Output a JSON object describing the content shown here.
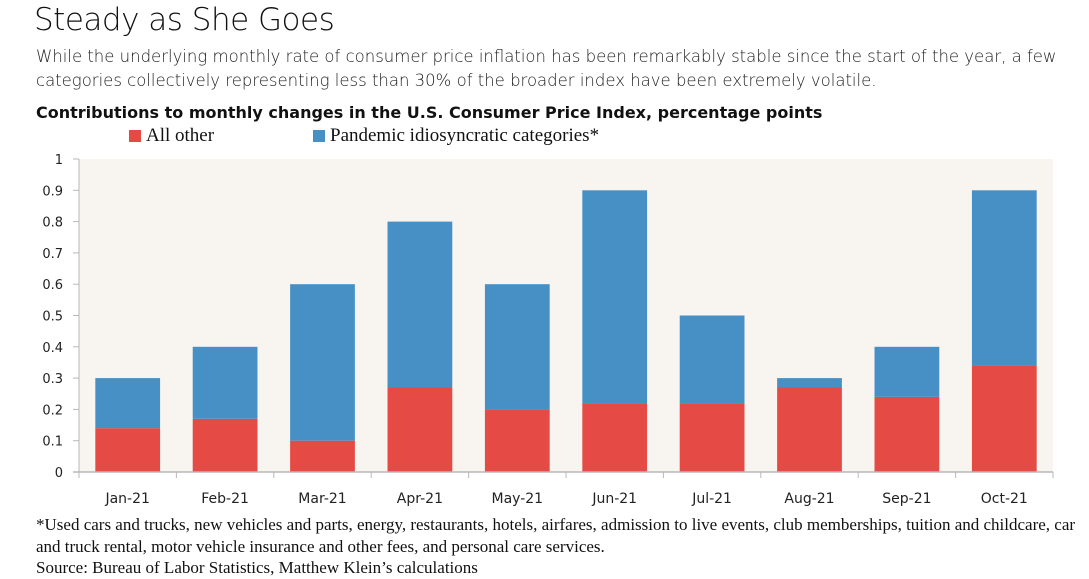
{
  "header": {
    "title": "Steady as She Goes",
    "subtitle": "While the underlying monthly rate of consumer price inflation has been remarkably stable since the start of the year, a few categories collectively representing less than 30% of the broader index have been extremely volatile."
  },
  "colors": {
    "all_other": "#e54a45",
    "pandemic": "#4690c6",
    "plot_background": "#f8f5f1",
    "axis": "#b8b8b8"
  },
  "footnotes": {
    "note": "*Used cars and trucks, new vehicles and parts, energy, restaurants, hotels, airfares, admission to live events, club memberships, tuition and childcare, car and truck rental, motor vehicle insurance and other fees, and personal care services.",
    "source": "Source: Bureau of Labor Statistics, Matthew Klein’s calculations"
  },
  "chart_data": {
    "type": "bar",
    "stacked": true,
    "title": "Contributions to monthly changes in the U.S. Consumer Price Index, percentage points",
    "xlabel": "",
    "ylabel": "",
    "ylim": [
      0,
      1
    ],
    "yticks": [
      0,
      0.1,
      0.2,
      0.3,
      0.4,
      0.5,
      0.6,
      0.7,
      0.8,
      0.9,
      1
    ],
    "ytick_labels": [
      "0",
      "0.1",
      "0.2",
      "0.3",
      "0.4",
      "0.5",
      "0.6",
      "0.7",
      "0.8",
      "0.9",
      "1"
    ],
    "grid": false,
    "legend_position": "top",
    "categories": [
      "Jan-21",
      "Feb-21",
      "Mar-21",
      "Apr-21",
      "May-21",
      "Jun-21",
      "Jul-21",
      "Aug-21",
      "Sep-21",
      "Oct-21"
    ],
    "series": [
      {
        "name": "All other",
        "color": "#e54a45",
        "values": [
          0.14,
          0.17,
          0.1,
          0.27,
          0.2,
          0.22,
          0.22,
          0.27,
          0.24,
          0.34
        ]
      },
      {
        "name": "Pandemic idiosyncratic categories*",
        "color": "#4690c6",
        "values": [
          0.16,
          0.23,
          0.5,
          0.53,
          0.4,
          0.68,
          0.28,
          0.03,
          0.16,
          0.56
        ]
      }
    ],
    "totals": [
      0.3,
      0.4,
      0.6,
      0.8,
      0.6,
      0.9,
      0.5,
      0.3,
      0.4,
      0.9
    ]
  }
}
